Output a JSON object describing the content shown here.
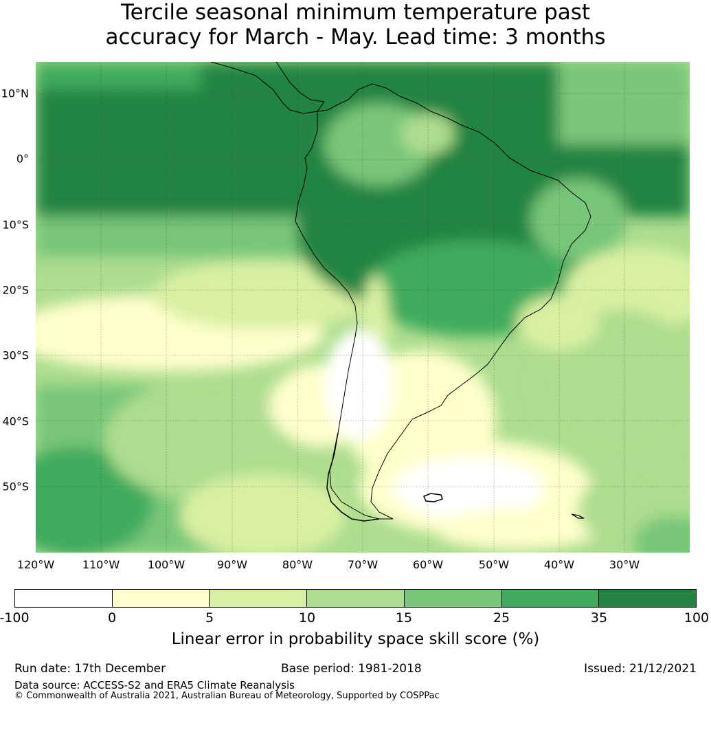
{
  "title": {
    "line1": "Tercile seasonal minimum temperature past",
    "line2": "accuracy for March - May. Lead time: 3 months"
  },
  "map": {
    "lon_labels": [
      "120°W",
      "110°W",
      "100°W",
      "90°W",
      "80°W",
      "70°W",
      "60°W",
      "50°W",
      "40°W",
      "30°W"
    ],
    "lat_labels": [
      "10°N",
      "0°",
      "10°S",
      "20°S",
      "30°S",
      "40°S",
      "50°S"
    ],
    "region": "South America",
    "colors": {
      "ocean_base": "#a9dd8f",
      "coastline": "#000000"
    }
  },
  "legend": {
    "ticks": [
      "-100",
      "0",
      "5",
      "10",
      "15",
      "25",
      "35",
      "100"
    ],
    "colors": [
      "#ffffff",
      "#ffffcc",
      "#d9f0a3",
      "#addd8e",
      "#78c679",
      "#41ab5d",
      "#238443"
    ],
    "label": "Linear error in probability space skill score (%)"
  },
  "footer": {
    "run_date": "Run date: 17th December",
    "base_period": "Base period: 1981-2018",
    "issued": "Issued: 21/12/2021",
    "data_source": "Data source: ACCESS-S2 and ERA5 Climate Reanalysis",
    "copyright": "© Commonwealth of Australia 2021, Australian Bureau of Meteorology, Supported by COSPPac"
  }
}
